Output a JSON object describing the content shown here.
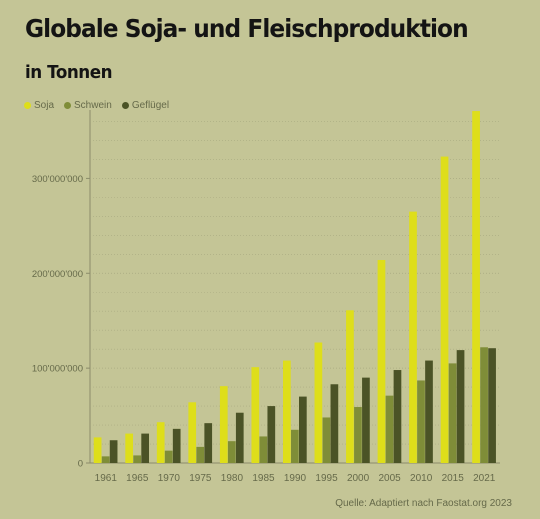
{
  "title": "Globale Soja- und Fleischproduktion",
  "subtitle": "in Tonnen",
  "source": "Quelle:  Adaptiert nach Faostat.org 2023",
  "colors": {
    "soja": "#dede1a",
    "schwein": "#7f8d38",
    "gefluegel": "#4b5326",
    "grid": "#a8a980",
    "axis": "#8b8c6a",
    "tick_text": "#666a4a"
  },
  "chart_data": {
    "type": "bar",
    "categories": [
      "1961",
      "1965",
      "1970",
      "1975",
      "1980",
      "1985",
      "1990",
      "1995",
      "2000",
      "2005",
      "2010",
      "2015",
      "2021"
    ],
    "series": [
      {
        "name": "Soja",
        "color_key": "soja",
        "values": [
          27000000,
          31000000,
          43000000,
          64000000,
          81000000,
          101000000,
          108000000,
          127000000,
          161000000,
          214000000,
          265000000,
          323000000,
          371000000
        ]
      },
      {
        "name": "Schwein",
        "color_key": "schwein",
        "values": [
          7000000,
          8000000,
          13000000,
          17000000,
          23000000,
          28000000,
          35000000,
          48000000,
          59000000,
          71000000,
          87000000,
          105000000,
          122000000
        ]
      },
      {
        "name": "Geflügel",
        "color_key": "gefluegel",
        "values": [
          24000000,
          31000000,
          36000000,
          42000000,
          53000000,
          60000000,
          70000000,
          83000000,
          90000000,
          98000000,
          108000000,
          119000000,
          121000000
        ]
      }
    ],
    "y_ticks": [
      0,
      100000000,
      200000000,
      300000000
    ],
    "y_tick_labels": [
      "0",
      "100'000'000",
      "200'000'000",
      "300'000'000"
    ],
    "ylim": [
      0,
      370000000
    ],
    "grid": true,
    "legend_position": "top-left",
    "xlabel": "",
    "ylabel": ""
  }
}
